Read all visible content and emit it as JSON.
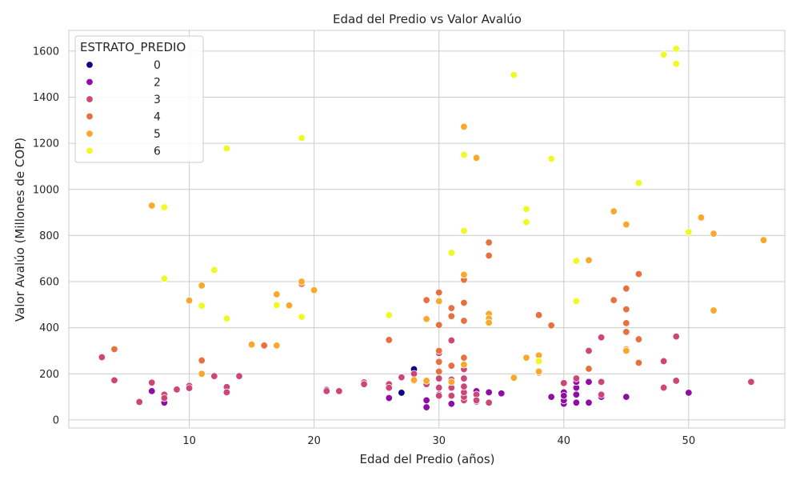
{
  "chart_data": {
    "type": "scatter",
    "title": "Edad del Predio vs Valor Avalúo",
    "xlabel": "Edad del Predio (años)",
    "ylabel": "Valor Avalúo (Millones de COP)",
    "xlim": [
      0.35,
      57.7
    ],
    "ylim": [
      -35,
      1690
    ],
    "xticks": [
      10,
      20,
      30,
      40,
      50
    ],
    "yticks": [
      0,
      200,
      400,
      600,
      800,
      1000,
      1200,
      1400,
      1600
    ],
    "grid": true,
    "legend": {
      "title": "ESTRATO_PREDIO",
      "position": "top-left"
    },
    "series": [
      {
        "name": "0",
        "color": "#0d0887",
        "points": [
          [
            28,
            220
          ],
          [
            27,
            118
          ],
          [
            29,
            160
          ]
        ]
      },
      {
        "name": "2",
        "color": "#8f0da4",
        "points": [
          [
            7,
            125
          ],
          [
            8,
            75
          ],
          [
            21,
            130
          ],
          [
            26,
            95
          ],
          [
            29,
            85
          ],
          [
            29,
            55
          ],
          [
            29,
            160
          ],
          [
            30,
            110
          ],
          [
            31,
            70
          ],
          [
            31,
            160
          ],
          [
            32,
            100
          ],
          [
            33,
            80
          ],
          [
            33,
            125
          ],
          [
            34,
            120
          ],
          [
            35,
            115
          ],
          [
            39,
            100
          ],
          [
            40,
            70
          ],
          [
            40,
            85
          ],
          [
            40,
            120
          ],
          [
            40,
            105
          ],
          [
            41,
            75
          ],
          [
            41,
            110
          ],
          [
            41,
            140
          ],
          [
            41,
            165
          ],
          [
            42,
            75
          ],
          [
            42,
            165
          ],
          [
            43,
            100
          ],
          [
            45,
            100
          ],
          [
            50,
            118
          ]
        ]
      },
      {
        "name": "3",
        "color": "#cc4778",
        "points": [
          [
            3,
            272
          ],
          [
            4,
            172
          ],
          [
            6,
            78
          ],
          [
            7,
            162
          ],
          [
            8,
            110
          ],
          [
            8,
            95
          ],
          [
            9,
            132
          ],
          [
            10,
            148
          ],
          [
            10,
            138
          ],
          [
            12,
            190
          ],
          [
            13,
            143
          ],
          [
            13,
            120
          ],
          [
            14,
            190
          ],
          [
            19,
            590
          ],
          [
            21,
            125
          ],
          [
            22,
            125
          ],
          [
            24,
            163
          ],
          [
            24,
            155
          ],
          [
            26,
            155
          ],
          [
            26,
            140
          ],
          [
            27,
            185
          ],
          [
            28,
            200
          ],
          [
            28,
            170
          ],
          [
            29,
            155
          ],
          [
            30,
            180
          ],
          [
            30,
            140
          ],
          [
            30,
            105
          ],
          [
            30,
            290
          ],
          [
            31,
            175
          ],
          [
            31,
            140
          ],
          [
            31,
            105
          ],
          [
            31,
            345
          ],
          [
            32,
            85
          ],
          [
            32,
            100
          ],
          [
            32,
            120
          ],
          [
            32,
            145
          ],
          [
            32,
            180
          ],
          [
            32,
            220
          ],
          [
            33,
            110
          ],
          [
            33,
            85
          ],
          [
            34,
            75
          ],
          [
            40,
            160
          ],
          [
            41,
            180
          ],
          [
            42,
            300
          ],
          [
            43,
            165
          ],
          [
            43,
            110
          ],
          [
            43,
            358
          ],
          [
            48,
            255
          ],
          [
            48,
            140
          ],
          [
            49,
            362
          ],
          [
            49,
            170
          ],
          [
            55,
            165
          ]
        ]
      },
      {
        "name": "4",
        "color": "#e8703e",
        "points": [
          [
            4,
            307
          ],
          [
            11,
            258
          ],
          [
            16,
            323
          ],
          [
            19,
            590
          ],
          [
            26,
            347
          ],
          [
            29,
            520
          ],
          [
            30,
            553
          ],
          [
            30,
            412
          ],
          [
            30,
            300
          ],
          [
            30,
            252
          ],
          [
            30,
            210
          ],
          [
            31,
            485
          ],
          [
            31,
            450
          ],
          [
            31,
            235
          ],
          [
            32,
            608
          ],
          [
            32,
            508
          ],
          [
            32,
            430
          ],
          [
            32,
            270
          ],
          [
            34,
            770
          ],
          [
            34,
            713
          ],
          [
            38,
            455
          ],
          [
            38,
            205
          ],
          [
            39,
            410
          ],
          [
            42,
            222
          ],
          [
            44,
            520
          ],
          [
            45,
            570
          ],
          [
            45,
            480
          ],
          [
            45,
            420
          ],
          [
            45,
            382
          ],
          [
            46,
            633
          ],
          [
            46,
            350
          ],
          [
            46,
            248
          ]
        ]
      },
      {
        "name": "5",
        "color": "#f9a82c",
        "points": [
          [
            7,
            930
          ],
          [
            10,
            518
          ],
          [
            11,
            583
          ],
          [
            11,
            200
          ],
          [
            15,
            327
          ],
          [
            17,
            545
          ],
          [
            17,
            323
          ],
          [
            18,
            497
          ],
          [
            19,
            600
          ],
          [
            20,
            563
          ],
          [
            28,
            173
          ],
          [
            29,
            438
          ],
          [
            29,
            170
          ],
          [
            30,
            515
          ],
          [
            31,
            165
          ],
          [
            32,
            630
          ],
          [
            32,
            1272
          ],
          [
            32,
            240
          ],
          [
            33,
            1137
          ],
          [
            34,
            460
          ],
          [
            34,
            440
          ],
          [
            34,
            422
          ],
          [
            36,
            183
          ],
          [
            37,
            270
          ],
          [
            38,
            280
          ],
          [
            38,
            210
          ],
          [
            42,
            693
          ],
          [
            44,
            905
          ],
          [
            45,
            848
          ],
          [
            45,
            307
          ],
          [
            45,
            300
          ],
          [
            51,
            878
          ],
          [
            52,
            808
          ],
          [
            52,
            475
          ],
          [
            56,
            780
          ]
        ]
      },
      {
        "name": "6",
        "color": "#f0f921",
        "points": [
          [
            8,
            923
          ],
          [
            8,
            613
          ],
          [
            11,
            495
          ],
          [
            12,
            650
          ],
          [
            13,
            1178
          ],
          [
            13,
            440
          ],
          [
            17,
            498
          ],
          [
            19,
            1223
          ],
          [
            19,
            447
          ],
          [
            26,
            455
          ],
          [
            31,
            725
          ],
          [
            32,
            1150
          ],
          [
            32,
            820
          ],
          [
            36,
            1497
          ],
          [
            37,
            915
          ],
          [
            37,
            858
          ],
          [
            38,
            255
          ],
          [
            39,
            1133
          ],
          [
            41,
            690
          ],
          [
            41,
            515
          ],
          [
            46,
            1028
          ],
          [
            48,
            1585
          ],
          [
            49,
            1610
          ],
          [
            49,
            1545
          ],
          [
            50,
            815
          ]
        ]
      }
    ]
  }
}
